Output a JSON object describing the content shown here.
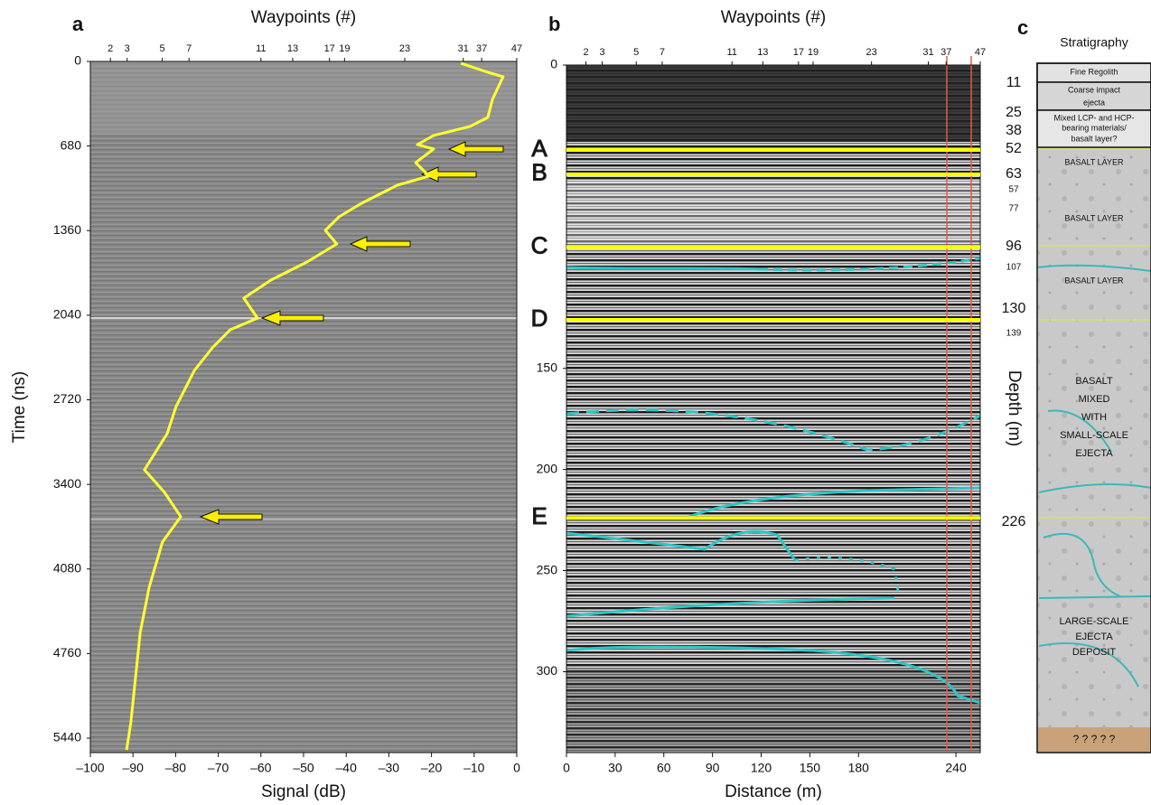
{
  "chart_data": [
    {
      "type": "line",
      "panel_label": "a",
      "top_label": "Waypoints (#)",
      "x_label": "Signal (dB)",
      "y_label": "Time (ns)",
      "xlim": [
        -100,
        0
      ],
      "xticks": [
        {
          "value": -100,
          "label": "–100"
        },
        {
          "value": -90,
          "label": "–90"
        },
        {
          "value": -80,
          "label": "–80"
        },
        {
          "value": -70,
          "label": "–70"
        },
        {
          "value": -60,
          "label": "–60"
        },
        {
          "value": -50,
          "label": "–50"
        },
        {
          "value": -40,
          "label": "–40"
        },
        {
          "value": -30,
          "label": "–30"
        },
        {
          "value": -20,
          "label": "–20"
        },
        {
          "value": -10,
          "label": "–10"
        },
        0
      ],
      "ylim": [
        0,
        5556
      ],
      "yticks": [
        0,
        680,
        1360,
        2040,
        2720,
        3400,
        4080,
        4760,
        5440
      ],
      "y_inverted": true,
      "x2lim": [
        0,
        255
      ],
      "x2ticks": [
        {
          "value": 12,
          "label": "2"
        },
        {
          "value": 22,
          "label": "3"
        },
        {
          "value": 43,
          "label": "5"
        },
        {
          "value": 59,
          "label": "7"
        },
        {
          "value": 102,
          "label": "11"
        },
        {
          "value": 121,
          "label": "13"
        },
        {
          "value": 143,
          "label": "17"
        },
        {
          "value": 152,
          "label": "19"
        },
        {
          "value": 188,
          "label": "23"
        },
        {
          "value": 223,
          "label": "31"
        },
        {
          "value": 234,
          "label": "37"
        },
        {
          "value": 255,
          "label": "47"
        }
      ],
      "series": [
        {
          "color": "#ffff33",
          "x": [
            -13.1,
            -6.8,
            -3.2,
            -5.7,
            -6.8,
            -11,
            -19.5,
            -23.3,
            -19.5,
            -23.7,
            -20.6,
            -28,
            -36.4,
            -41.7,
            -44.9,
            -42.2,
            -49.2,
            -57.6,
            -64,
            -60.8,
            -67.2,
            -71.4,
            -75.6,
            -79.9,
            -82,
            -87.3,
            -82.6,
            -78.8,
            -83.1,
            -86.2,
            -88.3,
            -89.4,
            -90.5,
            -91.5
          ],
          "y": [
            15,
            87,
            123,
            305,
            450,
            523,
            595,
            668,
            704,
            813,
            922,
            995,
            1140,
            1249,
            1358,
            1467,
            1612,
            1757,
            1903,
            2063,
            2157,
            2302,
            2484,
            2774,
            2992,
            3283,
            3464,
            3660,
            3863,
            4227,
            4590,
            4953,
            5316,
            5534
          ]
        }
      ]
    },
    {
      "type": "horizons",
      "panel_label": "b",
      "top_label": "Waypoints (#)",
      "x_label": "Distance (m)",
      "xlim": [
        0,
        255
      ],
      "xticks": [
        0,
        30,
        60,
        90,
        120,
        150,
        180,
        240
      ],
      "ylim": [
        0,
        340
      ],
      "yticks": [
        0,
        150,
        200,
        250,
        300
      ],
      "y_inverted": true,
      "x2lim": [
        0,
        255
      ],
      "x2ticks": [
        {
          "value": 12,
          "label": "2"
        },
        {
          "value": 22,
          "label": "3"
        },
        {
          "value": 43,
          "label": "5"
        },
        {
          "value": 59,
          "label": "7"
        },
        {
          "value": 102,
          "label": "11"
        },
        {
          "value": 121,
          "label": "13"
        },
        {
          "value": 143,
          "label": "17"
        },
        {
          "value": 152,
          "label": "19"
        },
        {
          "value": 188,
          "label": "23"
        },
        {
          "value": 223,
          "label": "31"
        },
        {
          "value": 234,
          "label": "37"
        },
        {
          "value": 255,
          "label": "47"
        }
      ],
      "horizons": {
        "color": "#ffff00",
        "labels": [
          "A",
          "B",
          "C",
          "D",
          "E"
        ],
        "values": [
          42,
          54,
          90,
          126,
          224
        ]
      }
    },
    {
      "type": "stratigraphy",
      "panel_label": "c",
      "title": "Stratigraphy",
      "depth_label": "Depth (m)",
      "depths": [
        11,
        25,
        38,
        52,
        63,
        57,
        77,
        96,
        107,
        130,
        139,
        226
      ],
      "highlight_index": 3,
      "highlight_color": "#e8141c",
      "units": [
        {
          "lines": [
            "Fine Regolith"
          ]
        },
        {
          "lines": [
            "Coarse impact",
            "ejecta"
          ]
        },
        {
          "lines": [
            "Mixed LCP- and HCP-",
            "bearing materials/",
            "basalt layer?"
          ]
        },
        {
          "lines": [
            "BASALT LAYER"
          ]
        },
        {
          "lines": [
            "BASALT LAYER"
          ]
        },
        {
          "lines": [
            "BASALT LAYER"
          ]
        },
        {
          "lines": [
            "BASALT",
            "MIXED",
            "WITH",
            "SMALL-SCALE",
            "EJECTA"
          ]
        },
        {
          "lines": [
            "LARGE-SCALE",
            "EJECTA",
            "DEPOSIT"
          ]
        },
        {
          "lines": [
            "? ? ? ? ?"
          ]
        }
      ]
    }
  ]
}
